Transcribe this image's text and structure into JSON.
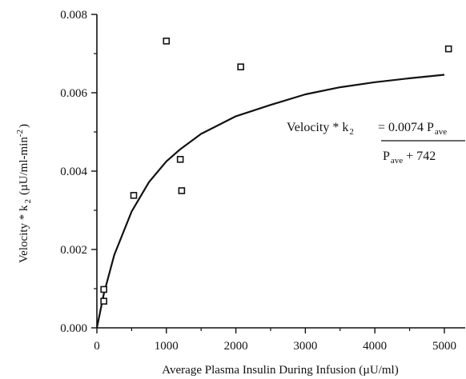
{
  "chart_data": {
    "type": "scatter",
    "title": "",
    "xlabel": "Average Plasma Insulin During Infusion (µU/ml)",
    "ylabel": {
      "main": "Velocity * k",
      "sub": "2",
      "units": "(µU/ml-min",
      "exp": "-2",
      "close": ")"
    },
    "xlim": [
      0,
      5300
    ],
    "ylim": [
      0,
      0.008
    ],
    "x_ticks": [
      0,
      1000,
      2000,
      3000,
      4000,
      5000
    ],
    "x_tick_labels": [
      "0",
      "1000",
      "2000",
      "3000",
      "4000",
      "5000"
    ],
    "y_ticks": [
      0,
      0.002,
      0.004,
      0.006,
      0.008
    ],
    "y_tick_labels": [
      "0.000",
      "0.002",
      "0.004",
      "0.006",
      "0.008"
    ],
    "grid": false,
    "series": [
      {
        "type": "scatter",
        "marker": "open-square",
        "points": [
          [
            100,
            0.00098
          ],
          [
            100,
            0.00068
          ],
          [
            530,
            0.00338
          ],
          [
            1000,
            0.00732
          ],
          [
            1200,
            0.0043
          ],
          [
            1220,
            0.0035
          ],
          [
            2070,
            0.00666
          ],
          [
            5060,
            0.00712
          ]
        ]
      },
      {
        "type": "line",
        "x": [
          0,
          100,
          250,
          500,
          750,
          1000,
          1200,
          1500,
          2000,
          2500,
          3000,
          3500,
          4000,
          4500,
          5000
        ],
        "y": [
          0,
          0.00087,
          0.00186,
          0.00297,
          0.00372,
          0.00425,
          0.00456,
          0.00495,
          0.0054,
          0.00569,
          0.00596,
          0.00614,
          0.00627,
          0.00637,
          0.00646
        ]
      }
    ],
    "annotation": {
      "lhs_main": "Velocity * k",
      "lhs_sub": "2",
      "rhs_num": "= 0.0074 P",
      "rhs_num_sub": "ave",
      "den_p": "P",
      "den_sub": "ave",
      "den_rest": " + 742"
    }
  },
  "colors": {
    "ink": "#111111",
    "background": "#ffffff"
  }
}
